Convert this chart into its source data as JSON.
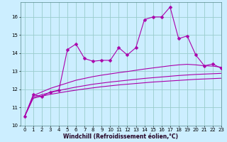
{
  "xlabel": "Windchill (Refroidissement éolien,°C)",
  "bg_color": "#cceeff",
  "line_color": "#aa00aa",
  "grid_color": "#99cccc",
  "x_values": [
    0,
    1,
    2,
    3,
    4,
    5,
    6,
    7,
    8,
    9,
    10,
    11,
    12,
    13,
    14,
    15,
    16,
    17,
    18,
    19,
    20,
    21,
    22,
    23
  ],
  "series1": [
    10.5,
    11.7,
    11.6,
    11.85,
    11.95,
    14.2,
    14.5,
    13.7,
    13.55,
    13.6,
    13.6,
    14.3,
    13.9,
    14.3,
    15.85,
    16.0,
    16.0,
    16.55,
    14.8,
    14.95,
    13.9,
    13.3,
    13.4,
    13.15
  ],
  "series2": [
    10.5,
    11.65,
    11.85,
    12.05,
    12.2,
    12.35,
    12.5,
    12.6,
    12.7,
    12.78,
    12.85,
    12.92,
    12.98,
    13.05,
    13.12,
    13.18,
    13.24,
    13.3,
    13.35,
    13.38,
    13.35,
    13.3,
    13.28,
    13.22
  ],
  "series3": [
    10.5,
    11.55,
    11.7,
    11.82,
    11.93,
    12.03,
    12.12,
    12.2,
    12.28,
    12.34,
    12.4,
    12.45,
    12.5,
    12.55,
    12.6,
    12.64,
    12.68,
    12.72,
    12.76,
    12.79,
    12.82,
    12.84,
    12.86,
    12.88
  ],
  "series4": [
    10.5,
    11.5,
    11.62,
    11.72,
    11.8,
    11.88,
    11.95,
    12.02,
    12.08,
    12.14,
    12.19,
    12.24,
    12.28,
    12.32,
    12.36,
    12.4,
    12.43,
    12.46,
    12.49,
    12.52,
    12.55,
    12.57,
    12.59,
    12.61
  ],
  "ylim": [
    10,
    16.8
  ],
  "xlim": [
    -0.5,
    23
  ],
  "yticks": [
    10,
    11,
    12,
    13,
    14,
    15,
    16
  ],
  "xticks": [
    0,
    1,
    2,
    3,
    4,
    5,
    6,
    7,
    8,
    9,
    10,
    11,
    12,
    13,
    14,
    15,
    16,
    17,
    18,
    19,
    20,
    21,
    22,
    23
  ],
  "markersize": 2.5,
  "linewidth": 0.8,
  "xlabel_fontsize": 5.5,
  "tick_fontsize": 5
}
